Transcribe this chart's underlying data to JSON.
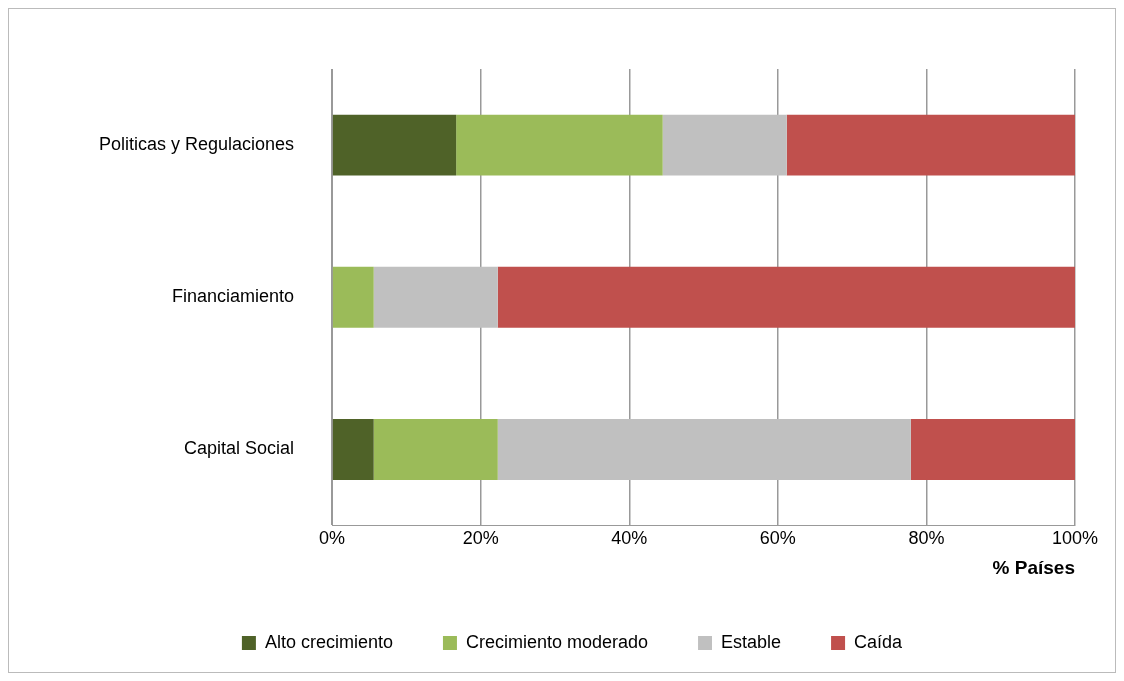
{
  "chart_data": {
    "type": "bar",
    "orientation": "horizontal",
    "stacked": true,
    "xlabel": "% Países",
    "categories": [
      "Politicas y Regulaciones",
      "Financiamiento",
      "Capital Social"
    ],
    "series": [
      {
        "name": "Alto crecimiento",
        "color": "#4f6228",
        "values": [
          16.7,
          0,
          5.6
        ]
      },
      {
        "name": "Crecimiento moderado",
        "color": "#9bbb59",
        "values": [
          27.8,
          5.6,
          16.7
        ]
      },
      {
        "name": "Estable",
        "color": "#c0c0c0",
        "values": [
          16.7,
          16.7,
          55.6
        ]
      },
      {
        "name": "Caída",
        "color": "#c0504d",
        "values": [
          38.8,
          77.7,
          22.1
        ]
      }
    ],
    "xlim": [
      0,
      100
    ],
    "xticks": [
      {
        "value": 0,
        "label": "0%"
      },
      {
        "value": 20,
        "label": "20%"
      },
      {
        "value": 40,
        "label": "40%"
      },
      {
        "value": 60,
        "label": "60%"
      },
      {
        "value": 80,
        "label": "80%"
      },
      {
        "value": 100,
        "label": "100%"
      }
    ],
    "grid": "x",
    "legend": "bottom"
  }
}
